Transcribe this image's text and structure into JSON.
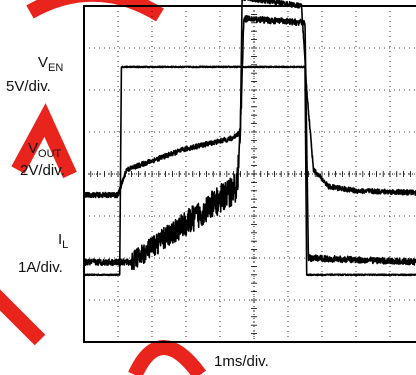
{
  "watermark_color": "#e8241c",
  "chart_data": {
    "type": "line",
    "grid": true,
    "x_divisions": 10,
    "y_divisions": 8,
    "xlabel": "1ms/div.",
    "channels": [
      {
        "name_main": "V",
        "name_sub": "EN",
        "scale": "5V/div.",
        "points": [
          [
            0,
            1.6
          ],
          [
            1.05,
            1.6
          ],
          [
            1.1,
            6.55
          ],
          [
            6.5,
            6.55
          ],
          [
            6.55,
            1.6
          ],
          [
            10,
            1.6
          ]
        ],
        "noise": 0.03
      },
      {
        "name_main": "V",
        "name_sub": "OUT",
        "scale": "2V/div.",
        "points": [
          [
            0,
            3.5
          ],
          [
            1.0,
            3.5
          ],
          [
            1.25,
            4.1
          ],
          [
            3.0,
            4.6
          ],
          [
            4.35,
            4.85
          ],
          [
            4.6,
            5.0
          ],
          [
            4.65,
            8.2
          ],
          [
            6.4,
            8.0
          ],
          [
            6.55,
            6.0
          ],
          [
            6.75,
            4.1
          ],
          [
            7.2,
            3.7
          ],
          [
            8.0,
            3.6
          ],
          [
            10,
            3.55
          ]
        ],
        "noise": 0.12
      },
      {
        "name_main": "I",
        "name_sub": "L",
        "scale": "1A/div.",
        "points": [
          [
            0,
            1.9
          ],
          [
            1.4,
            1.9
          ],
          [
            2.5,
            2.55
          ],
          [
            3.5,
            3.1
          ],
          [
            4.5,
            3.7
          ],
          [
            4.6,
            5.0
          ],
          [
            4.7,
            7.7
          ],
          [
            6.5,
            7.6
          ],
          [
            6.6,
            2.0
          ],
          [
            10,
            1.9
          ]
        ],
        "noise": 0.15,
        "ripple": true
      }
    ]
  }
}
